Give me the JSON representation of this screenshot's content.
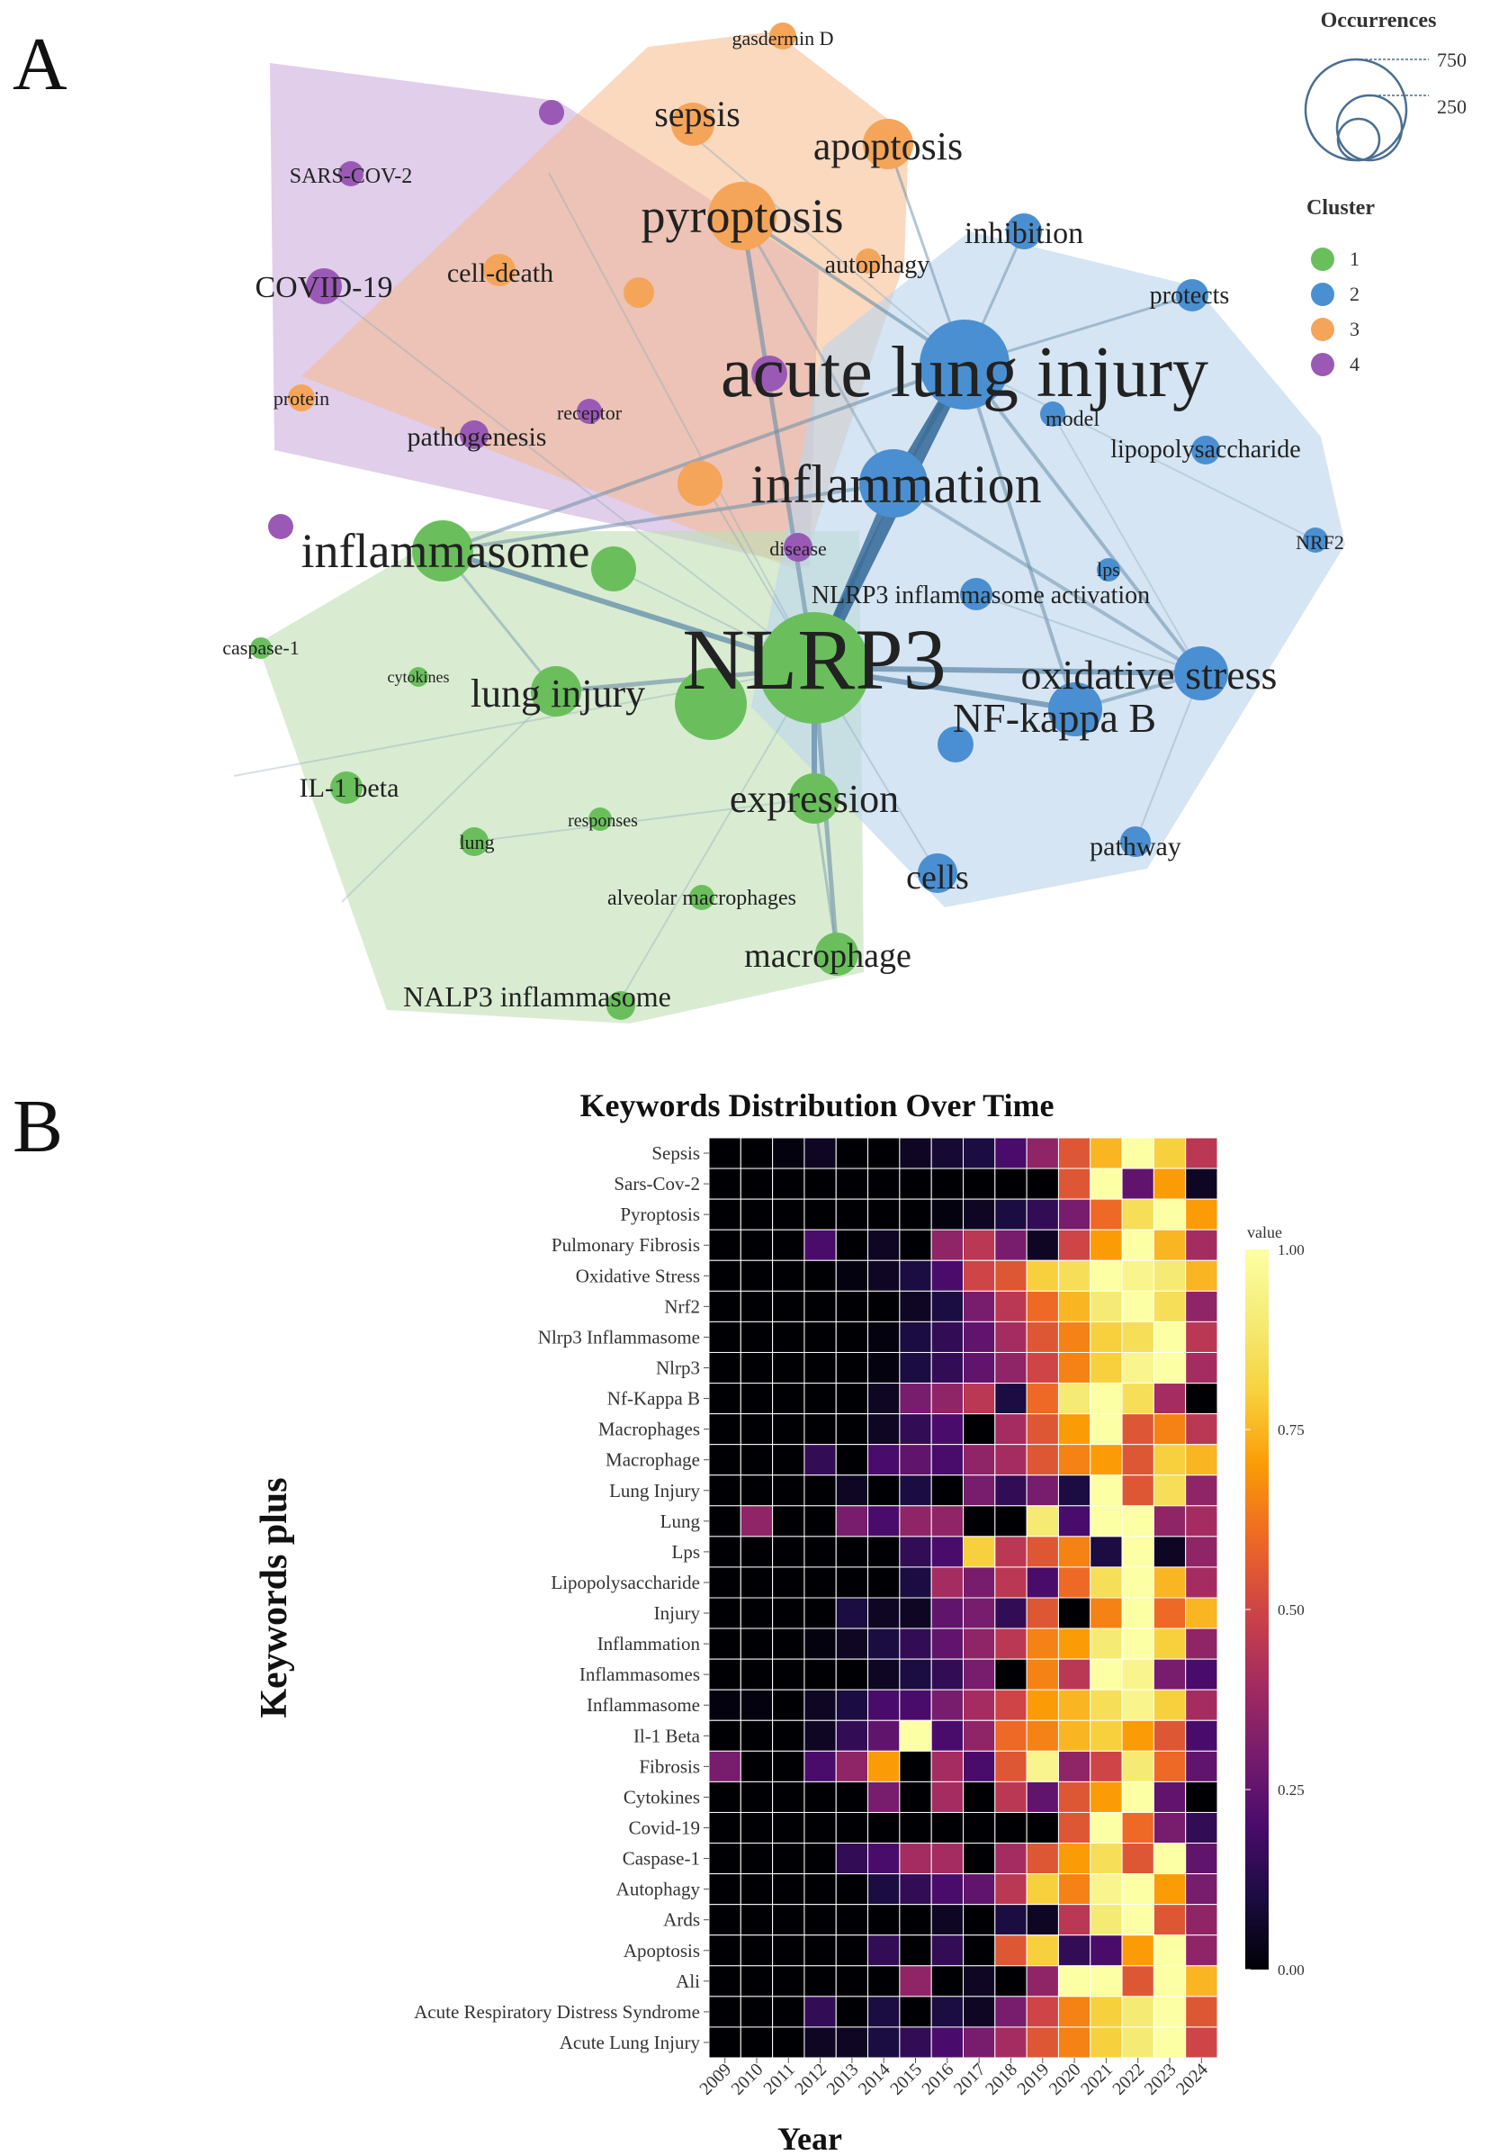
{
  "panels": {
    "a": "A",
    "b": "B"
  },
  "chart_data": [
    {
      "type": "network",
      "panel": "A",
      "legend": {
        "occurrences_title": "Occurrences",
        "occurrence_scale": [
          "750",
          "250"
        ],
        "cluster_title": "Cluster",
        "clusters": [
          {
            "id": "1",
            "color": "#6abf5c"
          },
          {
            "id": "2",
            "color": "#4a8fd1"
          },
          {
            "id": "3",
            "color": "#f5a55a"
          },
          {
            "id": "4",
            "color": "#9b59b6"
          }
        ]
      },
      "nodes": [
        {
          "label": "NLRP3",
          "cluster": 1,
          "weight": 720
        },
        {
          "label": "acute lung injury",
          "cluster": 2,
          "weight": 560
        },
        {
          "label": "inflammation",
          "cluster": 2,
          "weight": 300
        },
        {
          "label": "inflammasome",
          "cluster": 1,
          "weight": 190
        },
        {
          "label": "pyroptosis",
          "cluster": 3,
          "weight": 180
        },
        {
          "label": "oxidative stress",
          "cluster": 2,
          "weight": 150
        },
        {
          "label": "NF-kappa B",
          "cluster": 2,
          "weight": 130
        },
        {
          "label": "lung injury",
          "cluster": 1,
          "weight": 110
        },
        {
          "label": "expression",
          "cluster": 1,
          "weight": 110
        },
        {
          "label": "macrophage",
          "cluster": 1,
          "weight": 90
        },
        {
          "label": "sepsis",
          "cluster": 3,
          "weight": 85
        },
        {
          "label": "apoptosis",
          "cluster": 3,
          "weight": 95
        },
        {
          "label": "cells",
          "cluster": 2,
          "weight": 70
        },
        {
          "label": "inhibition",
          "cluster": 2,
          "weight": 65
        },
        {
          "label": "protects",
          "cluster": 2,
          "weight": 50
        },
        {
          "label": "lipopolysaccharide",
          "cluster": 2,
          "weight": 45
        },
        {
          "label": "model",
          "cluster": 2,
          "weight": 35
        },
        {
          "label": "NRF2",
          "cluster": 2,
          "weight": 30
        },
        {
          "label": "lps",
          "cluster": 2,
          "weight": 28
        },
        {
          "label": "pathway",
          "cluster": 2,
          "weight": 50
        },
        {
          "label": "NLRP3 inflammasome activation",
          "cluster": 2,
          "weight": 60
        },
        {
          "label": "autophagy",
          "cluster": 3,
          "weight": 40
        },
        {
          "label": "cell-death",
          "cluster": 3,
          "weight": 45
        },
        {
          "label": "gasdermin D",
          "cluster": 3,
          "weight": 30
        },
        {
          "label": "protein",
          "cluster": 3,
          "weight": 30
        },
        {
          "label": "SARS-COV-2",
          "cluster": 4,
          "weight": 35
        },
        {
          "label": "COVID-19",
          "cluster": 4,
          "weight": 55
        },
        {
          "label": "receptor",
          "cluster": 4,
          "weight": 30
        },
        {
          "label": "pathogenesis",
          "cluster": 4,
          "weight": 40
        },
        {
          "label": "disease",
          "cluster": 4,
          "weight": 35
        },
        {
          "label": "caspase-1",
          "cluster": 1,
          "weight": 28
        },
        {
          "label": "cytokines",
          "cluster": 1,
          "weight": 22
        },
        {
          "label": "IL-1 beta",
          "cluster": 1,
          "weight": 45
        },
        {
          "label": "lung",
          "cluster": 1,
          "weight": 35
        },
        {
          "label": "responses",
          "cluster": 1,
          "weight": 25
        },
        {
          "label": "alveolar macrophages",
          "cluster": 1,
          "weight": 30
        },
        {
          "label": "NALP3 inflammasome",
          "cluster": 1,
          "weight": 40
        }
      ]
    },
    {
      "type": "heatmap",
      "panel": "B",
      "title": "Keywords Distribution Over Time",
      "xlabel": "Year",
      "ylabel": "Keywords plus",
      "colorbar_title": "value",
      "colorbar_ticks": [
        "1.00",
        "0.75",
        "0.50",
        "0.25",
        "0.00"
      ],
      "years": [
        "2009",
        "2010",
        "2011",
        "2012",
        "2013",
        "2014",
        "2015",
        "2016",
        "2017",
        "2018",
        "2019",
        "2020",
        "2021",
        "2022",
        "2023",
        "2024"
      ],
      "rows": [
        {
          "keyword": "Sepsis",
          "values": [
            0.0,
            0.0,
            0.02,
            0.05,
            0.0,
            0.0,
            0.05,
            0.08,
            0.1,
            0.2,
            0.35,
            0.55,
            0.75,
            1.0,
            0.8,
            0.45
          ]
        },
        {
          "keyword": "Sars-Cov-2",
          "values": [
            0.0,
            0.0,
            0.0,
            0.0,
            0.0,
            0.0,
            0.0,
            0.0,
            0.0,
            0.0,
            0.0,
            0.55,
            1.0,
            0.25,
            0.7,
            0.05
          ]
        },
        {
          "keyword": "Pyroptosis",
          "values": [
            0.0,
            0.0,
            0.0,
            0.0,
            0.0,
            0.0,
            0.0,
            0.02,
            0.05,
            0.1,
            0.15,
            0.3,
            0.6,
            0.85,
            1.0,
            0.7
          ]
        },
        {
          "keyword": "Pulmonary Fibrosis",
          "values": [
            0.0,
            0.0,
            0.0,
            0.2,
            0.0,
            0.05,
            0.0,
            0.35,
            0.45,
            0.3,
            0.05,
            0.5,
            0.7,
            1.0,
            0.75,
            0.4
          ]
        },
        {
          "keyword": "Oxidative Stress",
          "values": [
            0.0,
            0.0,
            0.0,
            0.0,
            0.02,
            0.05,
            0.1,
            0.2,
            0.5,
            0.55,
            0.8,
            0.85,
            1.0,
            0.95,
            0.9,
            0.75
          ]
        },
        {
          "keyword": "Nrf2",
          "values": [
            0.0,
            0.0,
            0.0,
            0.0,
            0.0,
            0.0,
            0.05,
            0.1,
            0.3,
            0.45,
            0.6,
            0.75,
            0.9,
            1.0,
            0.85,
            0.35
          ]
        },
        {
          "keyword": "Nlrp3 Inflammasome",
          "values": [
            0.0,
            0.0,
            0.0,
            0.0,
            0.0,
            0.02,
            0.1,
            0.15,
            0.25,
            0.4,
            0.55,
            0.65,
            0.8,
            0.85,
            1.0,
            0.45
          ]
        },
        {
          "keyword": "Nlrp3",
          "values": [
            0.0,
            0.0,
            0.0,
            0.0,
            0.0,
            0.02,
            0.1,
            0.15,
            0.25,
            0.35,
            0.5,
            0.65,
            0.8,
            0.95,
            1.0,
            0.4
          ]
        },
        {
          "keyword": "Nf-Kappa B",
          "values": [
            0.0,
            0.0,
            0.0,
            0.0,
            0.0,
            0.05,
            0.3,
            0.35,
            0.45,
            0.1,
            0.6,
            0.9,
            1.0,
            0.85,
            0.4,
            0.0
          ]
        },
        {
          "keyword": "Macrophages",
          "values": [
            0.0,
            0.0,
            0.0,
            0.0,
            0.0,
            0.05,
            0.15,
            0.2,
            0.0,
            0.4,
            0.55,
            0.7,
            1.0,
            0.55,
            0.65,
            0.45
          ]
        },
        {
          "keyword": "Macrophage",
          "values": [
            0.0,
            0.0,
            0.0,
            0.15,
            0.0,
            0.2,
            0.25,
            0.2,
            0.35,
            0.4,
            0.55,
            0.65,
            0.7,
            0.55,
            0.8,
            0.75
          ]
        },
        {
          "keyword": "Lung Injury",
          "values": [
            0.0,
            0.0,
            0.0,
            0.0,
            0.05,
            0.0,
            0.1,
            0.0,
            0.3,
            0.15,
            0.3,
            0.1,
            1.0,
            0.55,
            0.85,
            0.35
          ]
        },
        {
          "keyword": "Lung",
          "values": [
            0.0,
            0.35,
            0.0,
            0.0,
            0.3,
            0.2,
            0.35,
            0.35,
            0.0,
            0.0,
            0.9,
            0.2,
            1.0,
            1.0,
            0.35,
            0.4
          ]
        },
        {
          "keyword": "Lps",
          "values": [
            0.0,
            0.0,
            0.0,
            0.0,
            0.0,
            0.0,
            0.15,
            0.2,
            0.8,
            0.45,
            0.55,
            0.65,
            0.1,
            1.0,
            0.05,
            0.35
          ]
        },
        {
          "keyword": "Lipopolysaccharide",
          "values": [
            0.0,
            0.0,
            0.0,
            0.0,
            0.0,
            0.0,
            0.1,
            0.4,
            0.3,
            0.45,
            0.2,
            0.6,
            0.85,
            1.0,
            0.75,
            0.4
          ]
        },
        {
          "keyword": "Injury",
          "values": [
            0.0,
            0.0,
            0.0,
            0.0,
            0.1,
            0.05,
            0.05,
            0.25,
            0.3,
            0.15,
            0.55,
            0.0,
            0.65,
            1.0,
            0.6,
            0.75
          ]
        },
        {
          "keyword": "Inflammation",
          "values": [
            0.0,
            0.0,
            0.0,
            0.02,
            0.05,
            0.1,
            0.15,
            0.25,
            0.35,
            0.45,
            0.65,
            0.7,
            0.9,
            1.0,
            0.8,
            0.35
          ]
        },
        {
          "keyword": "Inflammasomes",
          "values": [
            0.0,
            0.0,
            0.0,
            0.0,
            0.0,
            0.05,
            0.1,
            0.15,
            0.3,
            0.0,
            0.65,
            0.45,
            1.0,
            0.95,
            0.3,
            0.2
          ]
        },
        {
          "keyword": "Inflammasome",
          "values": [
            0.02,
            0.02,
            0.0,
            0.05,
            0.1,
            0.2,
            0.2,
            0.3,
            0.4,
            0.5,
            0.7,
            0.75,
            0.85,
            0.95,
            0.8,
            0.4
          ]
        },
        {
          "keyword": "Il-1 Beta",
          "values": [
            0.0,
            0.0,
            0.0,
            0.05,
            0.15,
            0.25,
            1.0,
            0.2,
            0.35,
            0.6,
            0.65,
            0.75,
            0.8,
            0.7,
            0.55,
            0.2
          ]
        },
        {
          "keyword": "Fibrosis",
          "values": [
            0.3,
            0.0,
            0.0,
            0.2,
            0.35,
            0.7,
            0.0,
            0.4,
            0.2,
            0.55,
            0.95,
            0.35,
            0.5,
            0.9,
            0.6,
            0.25
          ]
        },
        {
          "keyword": "Cytokines",
          "values": [
            0.0,
            0.0,
            0.0,
            0.0,
            0.0,
            0.3,
            0.0,
            0.4,
            0.0,
            0.45,
            0.25,
            0.55,
            0.7,
            1.0,
            0.25,
            0.0
          ]
        },
        {
          "keyword": "Covid-19",
          "values": [
            0.0,
            0.0,
            0.0,
            0.0,
            0.0,
            0.0,
            0.0,
            0.0,
            0.0,
            0.0,
            0.0,
            0.55,
            1.0,
            0.6,
            0.3,
            0.15
          ]
        },
        {
          "keyword": "Caspase-1",
          "values": [
            0.0,
            0.0,
            0.0,
            0.0,
            0.15,
            0.2,
            0.4,
            0.4,
            0.0,
            0.4,
            0.55,
            0.7,
            0.85,
            0.55,
            1.0,
            0.25
          ]
        },
        {
          "keyword": "Autophagy",
          "values": [
            0.0,
            0.0,
            0.0,
            0.0,
            0.0,
            0.1,
            0.15,
            0.2,
            0.25,
            0.45,
            0.8,
            0.65,
            0.95,
            1.0,
            0.7,
            0.3
          ]
        },
        {
          "keyword": "Ards",
          "values": [
            0.0,
            0.0,
            0.0,
            0.0,
            0.0,
            0.0,
            0.0,
            0.05,
            0.0,
            0.1,
            0.05,
            0.45,
            0.9,
            1.0,
            0.55,
            0.35
          ]
        },
        {
          "keyword": "Apoptosis",
          "values": [
            0.0,
            0.0,
            0.0,
            0.0,
            0.0,
            0.15,
            0.0,
            0.15,
            0.0,
            0.55,
            0.8,
            0.15,
            0.2,
            0.7,
            1.0,
            0.35
          ]
        },
        {
          "keyword": "Ali",
          "values": [
            0.0,
            0.0,
            0.0,
            0.0,
            0.0,
            0.0,
            0.35,
            0.0,
            0.05,
            0.0,
            0.35,
            1.0,
            1.0,
            0.55,
            1.0,
            0.75
          ]
        },
        {
          "keyword": "Acute Respiratory Distress Syndrome",
          "values": [
            0.0,
            0.0,
            0.0,
            0.15,
            0.0,
            0.1,
            0.0,
            0.1,
            0.05,
            0.3,
            0.5,
            0.65,
            0.8,
            0.9,
            1.0,
            0.55
          ]
        },
        {
          "keyword": "Acute Lung Injury",
          "values": [
            0.0,
            0.0,
            0.0,
            0.05,
            0.05,
            0.1,
            0.15,
            0.2,
            0.3,
            0.4,
            0.55,
            0.65,
            0.8,
            0.9,
            1.0,
            0.5
          ]
        }
      ]
    }
  ]
}
